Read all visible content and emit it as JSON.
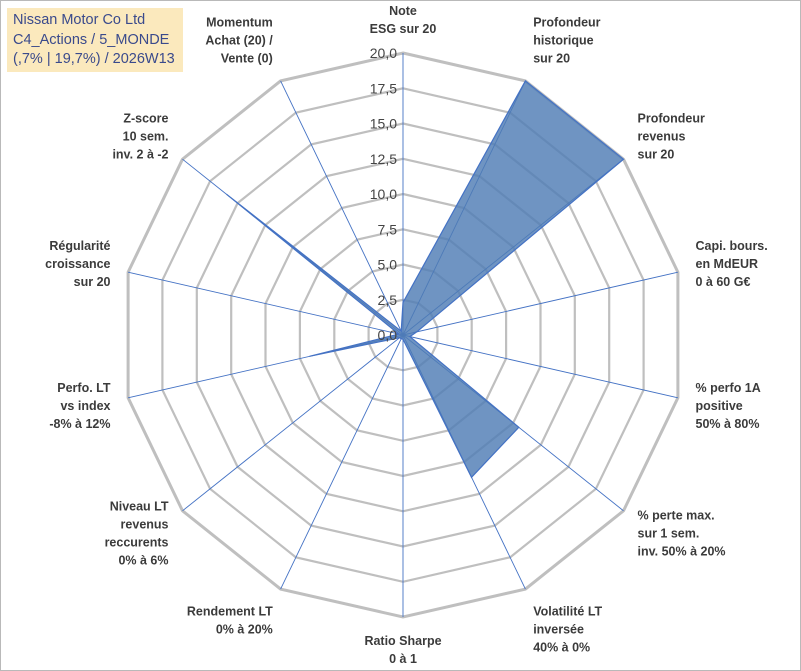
{
  "title_lines": [
    "Nissan Motor Co Ltd",
    "C4_Actions / 5_MONDE",
    "(,7% | 19,7%) / 2026W13"
  ],
  "colors": {
    "fill": "#4f7cb5",
    "stroke": "#4472c4",
    "grid": "#bfbfbf",
    "spoke": "#4472c4",
    "title_bg": "#fbe9bd"
  },
  "chart_data": {
    "type": "radar",
    "rmax": 20,
    "ticks": [
      "0,0",
      "2,5",
      "5,0",
      "7,5",
      "10,0",
      "12,5",
      "15,0",
      "17,5",
      "20,0"
    ],
    "axes": [
      {
        "label": [
          "Note",
          "ESG sur 20"
        ],
        "value": 2.3
      },
      {
        "label": [
          "Profondeur",
          "historique",
          "sur 20"
        ],
        "value": 20.0
      },
      {
        "label": [
          "Profondeur",
          "revenus",
          "sur 20"
        ],
        "value": 20.0
      },
      {
        "label": [
          "Capi. bours.",
          "en MdEUR",
          "0 à 60 G€"
        ],
        "value": 1.0
      },
      {
        "label": [
          "% perfo 1A",
          "positive",
          "50% à 80%"
        ],
        "value": 0.5
      },
      {
        "label": [
          "% perte max.",
          "sur 1 sem.",
          "inv. 50% à 20%"
        ],
        "value": 10.5
      },
      {
        "label": [
          "Volatilité LT",
          "inversée",
          "40% à 0%"
        ],
        "value": 11.2
      },
      {
        "label": [
          "Ratio Sharpe",
          "0 à 1"
        ],
        "value": 0.3
      },
      {
        "label": [
          "Rendement LT",
          "0% à 20%"
        ],
        "value": 0.3
      },
      {
        "label": [
          "Niveau LT",
          "revenus",
          "reccurents",
          "0% à 6%"
        ],
        "value": 0.3
      },
      {
        "label": [
          "Perfo. LT",
          "vs index",
          "-8% à 12%"
        ],
        "value": 6.8
      },
      {
        "label": [
          "Régularité",
          "croissance",
          "sur 20"
        ],
        "value": 0.3
      },
      {
        "label": [
          "Z-score",
          "10 sem.",
          "inv. 2 à -2"
        ],
        "value": 16.0
      },
      {
        "label": [
          "Momentum",
          "Achat (20) /",
          "Vente (0)"
        ],
        "value": 0.3
      }
    ]
  }
}
